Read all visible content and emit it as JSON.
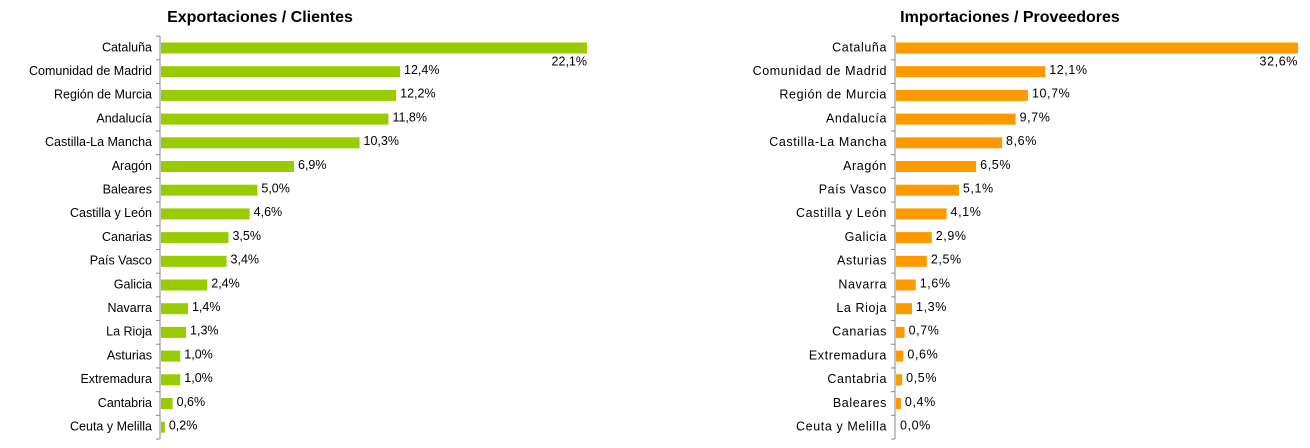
{
  "chart_data": [
    {
      "type": "bar",
      "orientation": "horizontal",
      "title": "Exportaciones / Clientes",
      "color": "#99cc00",
      "categories": [
        "Cataluña",
        "Comunidad de Madrid",
        "Región de Murcia",
        "Andalucía",
        "Castilla-La Mancha",
        "Aragón",
        "Baleares",
        "Castilla y León",
        "Canarias",
        "País Vasco",
        "Galicia",
        "Navarra",
        "La Rioja",
        "Asturias",
        "Extremadura",
        "Cantabria",
        "Ceuta y Melilla"
      ],
      "values": [
        22.1,
        12.4,
        12.2,
        11.8,
        10.3,
        6.9,
        5.0,
        4.6,
        3.5,
        3.4,
        2.4,
        1.4,
        1.3,
        1.0,
        1.0,
        0.6,
        0.2
      ],
      "value_labels": [
        "22,1%",
        "12,4%",
        "12,2%",
        "11,8%",
        "10,3%",
        "6,9%",
        "5,0%",
        "4,6%",
        "3,5%",
        "3,4%",
        "2,4%",
        "1,4%",
        "1,3%",
        "1,0%",
        "1,0%",
        "0,6%",
        "0,2%"
      ]
    },
    {
      "type": "bar",
      "orientation": "horizontal",
      "title": "Importaciones / Proveedores",
      "color": "#ff9900",
      "categories": [
        "Cataluña",
        "Comunidad de Madrid",
        "Región de Murcia",
        "Andalucía",
        "Castilla-La Mancha",
        "Aragón",
        "País Vasco",
        "Castilla y León",
        "Galicia",
        "Asturias",
        "Navarra",
        "La Rioja",
        "Canarias",
        "Extremadura",
        "Cantabria",
        "Baleares",
        "Ceuta y Melilla"
      ],
      "values": [
        32.6,
        12.1,
        10.7,
        9.7,
        8.6,
        6.5,
        5.1,
        4.1,
        2.9,
        2.5,
        1.6,
        1.3,
        0.7,
        0.6,
        0.5,
        0.4,
        0.0
      ],
      "value_labels": [
        "32,6%",
        "12,1%",
        "10,7%",
        "9,7%",
        "8,6%",
        "6,5%",
        "5,1%",
        "4,1%",
        "2,9%",
        "2,5%",
        "1,6%",
        "1,3%",
        "0,7%",
        "0,6%",
        "0,5%",
        "0,4%",
        "0,0%"
      ]
    }
  ]
}
